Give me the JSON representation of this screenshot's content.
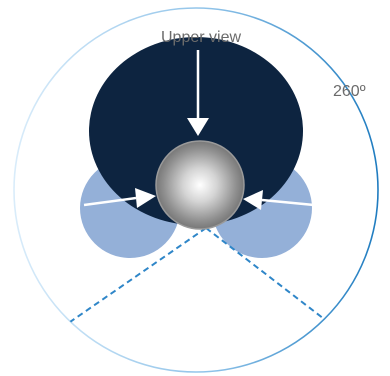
{
  "diagram": {
    "view_label": "Upper view",
    "angle_label": "260º"
  },
  "colors": {
    "dark_lobe": "#0d2440",
    "light_lobe": "#94b0d8",
    "arrow": "#ffffff",
    "dashed_line": "#2f86c8",
    "ring_start": "#d6e9f8",
    "ring_end": "#1f7cc0",
    "text": "#6b6b6b"
  },
  "icons": {
    "center": "sphere-icon"
  }
}
